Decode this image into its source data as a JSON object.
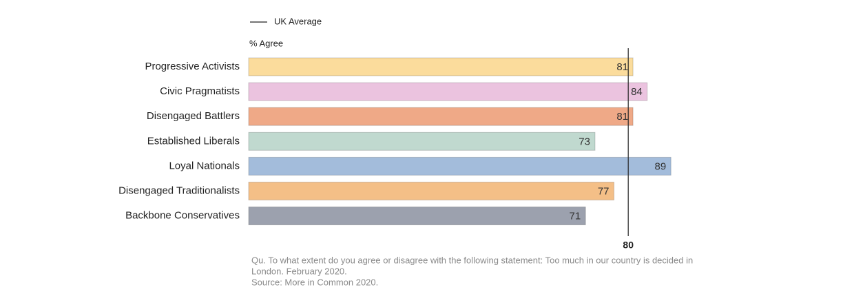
{
  "chart_data": {
    "type": "bar",
    "orientation": "horizontal",
    "value_axis_label": "% Agree",
    "categories": [
      "Progressive Activists",
      "Civic Pragmatists",
      "Disengaged Battlers",
      "Established Liberals",
      "Loyal Nationals",
      "Disengaged Traditionalists",
      "Backbone Conservatives"
    ],
    "values": [
      81,
      84,
      81,
      73,
      89,
      77,
      71
    ],
    "colors": [
      "#fbdc9c",
      "#ebc3df",
      "#efa987",
      "#c0d9cf",
      "#a3bcdb",
      "#f4bf87",
      "#9ca1ae"
    ],
    "xlim": [
      0,
      100
    ],
    "reference_line": {
      "label": "UK Average",
      "value": 80,
      "color": "#222222"
    },
    "notes": [
      "Qu. To what extent do you agree or disagree with the following statement: Too much in our country is decided in",
      "London. February 2020.",
      "Source: More in Common 2020."
    ]
  }
}
